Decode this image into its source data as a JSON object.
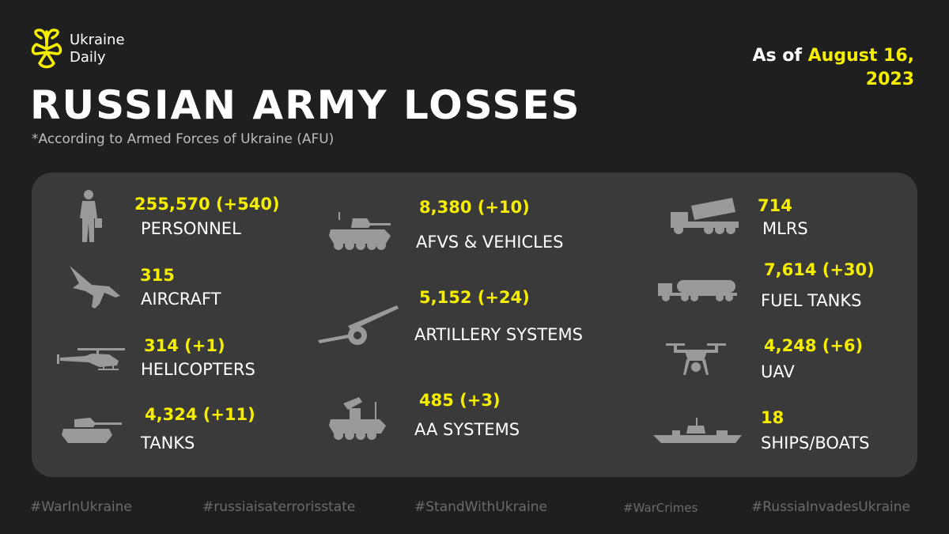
{
  "brand": {
    "line1": "Ukraine",
    "line2": "Daily",
    "logo_icon": "ukraine-daily-flower-logo",
    "accent": "#f6ee00"
  },
  "date": {
    "prefix": "As of ",
    "date_line1": "August 16,",
    "date_line2": "2023"
  },
  "title": "RUSSIAN ARMY LOSSES",
  "subtitle": "*According to Armed Forces of Ukraine (AFU)",
  "losses": [
    {
      "icon": "soldier-icon",
      "value": "255,570 (+540)",
      "label": "PERSONNEL"
    },
    {
      "icon": "aircraft-icon",
      "value": "315",
      "label": "AIRCRAFT"
    },
    {
      "icon": "helicopter-icon",
      "value": "314 (+1)",
      "label": "HELICOPTERS"
    },
    {
      "icon": "tank-icon",
      "value": "4,324 (+11)",
      "label": "TANKS"
    },
    {
      "icon": "afv-icon",
      "value": "8,380 (+10)",
      "label": "AFVS & VEHICLES"
    },
    {
      "icon": "artillery-icon",
      "value": "5,152 (+24)",
      "label": "ARTILLERY SYSTEMS"
    },
    {
      "icon": "aa-system-icon",
      "value": "485 (+3)",
      "label": "AA SYSTEMS"
    },
    {
      "icon": "mlrs-icon",
      "value": "714",
      "label": "MLRS"
    },
    {
      "icon": "fuel-tank-icon",
      "value": "7,614 (+30)",
      "label": "FUEL TANKS"
    },
    {
      "icon": "drone-icon",
      "value": "4,248 (+6)",
      "label": "UAV"
    },
    {
      "icon": "ship-icon",
      "value": "18",
      "label": "SHIPS/BOATS"
    }
  ],
  "hashtags": [
    "#WarInUkraine",
    "#russiaisaterrorisstate",
    "#StandWithUkraine",
    "#WarCrimes",
    "#RussiaInvadesUkraine"
  ]
}
